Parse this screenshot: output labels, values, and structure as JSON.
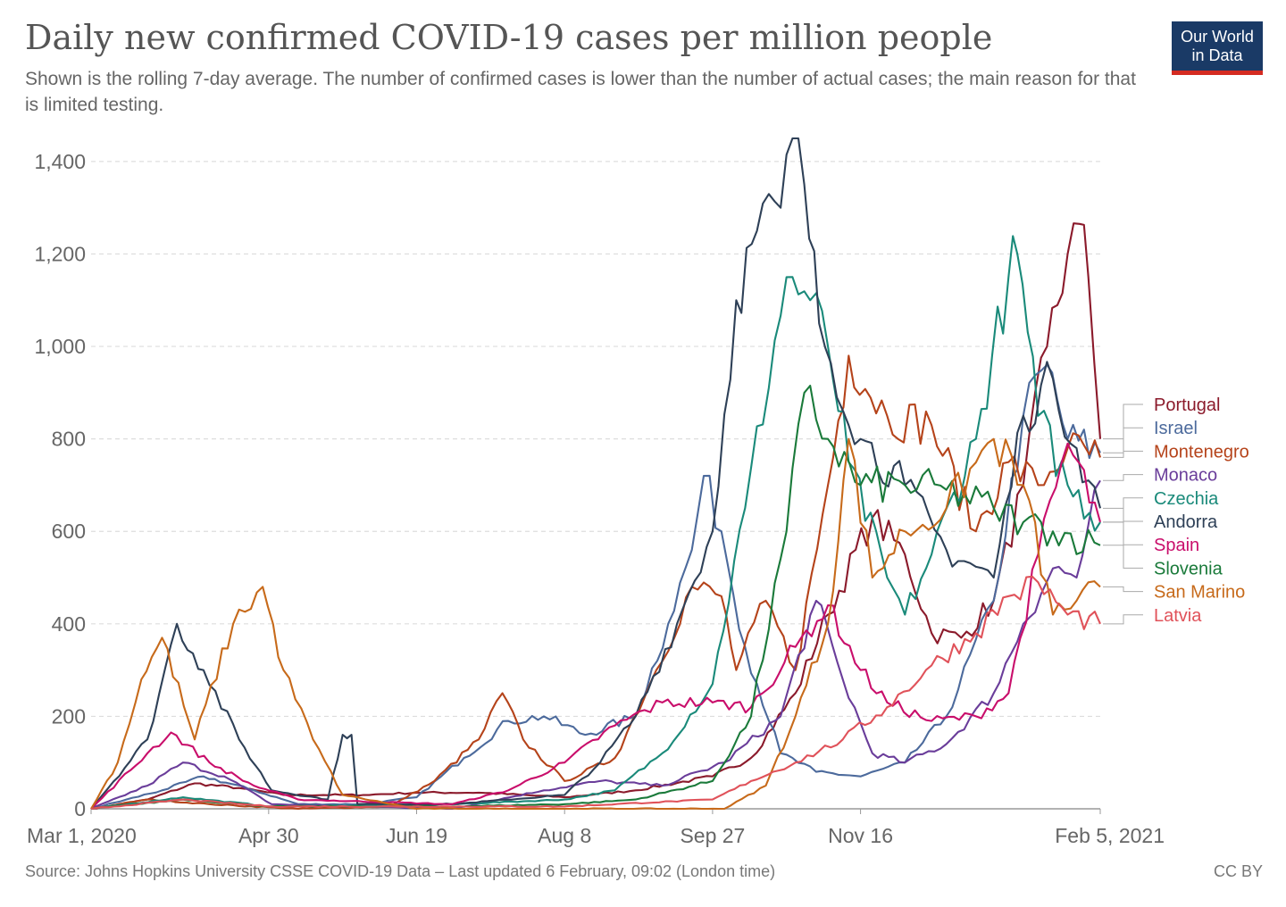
{
  "header": {
    "title": "Daily new confirmed COVID-19 cases per million people",
    "subtitle": "Shown is the rolling 7-day average. The number of confirmed cases is lower than the number of actual cases; the main reason for that is limited testing."
  },
  "logo": {
    "line1": "Our World",
    "line2": "in Data",
    "bg_color": "#1a3a66",
    "bar_color": "#d42b21"
  },
  "footer": {
    "source": "Source: Johns Hopkins University CSSE COVID-19 Data – Last updated 6 February, 09:02 (London time)",
    "license": "CC BY"
  },
  "chart_data": {
    "type": "line",
    "title": "Daily new confirmed COVID-19 cases per million people",
    "ylim": [
      0,
      1450
    ],
    "yticks": [
      0,
      200,
      400,
      600,
      800,
      1000,
      1200,
      1400
    ],
    "ytick_labels": [
      "0",
      "200",
      "400",
      "600",
      "800",
      "1,000",
      "1,200",
      "1,400"
    ],
    "xlim": [
      "2020-03-01",
      "2021-02-05"
    ],
    "xticks": [
      "2020-03-01",
      "2020-04-30",
      "2020-06-19",
      "2020-08-08",
      "2020-09-27",
      "2020-11-16",
      "2021-02-05"
    ],
    "xtick_labels": [
      "Mar 1, 2020",
      "Apr 30",
      "Jun 19",
      "Aug 8",
      "Sep 27",
      "Nov 16",
      "Feb 5, 2021"
    ],
    "grid": "horizontal-dashed",
    "legend": "right-end-labels",
    "series": [
      {
        "name": "Portugal",
        "color": "#8b1a2b",
        "points": [
          [
            "2020-03-01",
            0
          ],
          [
            "2020-03-20",
            20
          ],
          [
            "2020-04-05",
            55
          ],
          [
            "2020-04-20",
            45
          ],
          [
            "2020-05-05",
            30
          ],
          [
            "2020-06-01",
            30
          ],
          [
            "2020-06-19",
            35
          ],
          [
            "2020-07-10",
            35
          ],
          [
            "2020-08-08",
            25
          ],
          [
            "2020-09-01",
            40
          ],
          [
            "2020-09-27",
            70
          ],
          [
            "2020-10-10",
            110
          ],
          [
            "2020-10-25",
            250
          ],
          [
            "2020-11-05",
            420
          ],
          [
            "2020-11-20",
            630
          ],
          [
            "2020-12-01",
            550
          ],
          [
            "2020-12-10",
            380
          ],
          [
            "2020-12-20",
            370
          ],
          [
            "2020-12-31",
            450
          ],
          [
            "2021-01-10",
            700
          ],
          [
            "2021-01-18",
            1000
          ],
          [
            "2021-01-25",
            1200
          ],
          [
            "2021-01-29",
            1265
          ],
          [
            "2021-02-01",
            1150
          ],
          [
            "2021-02-05",
            800
          ]
        ]
      },
      {
        "name": "Israel",
        "color": "#4c6a9c",
        "points": [
          [
            "2020-03-01",
            0
          ],
          [
            "2020-03-25",
            40
          ],
          [
            "2020-04-08",
            70
          ],
          [
            "2020-04-25",
            40
          ],
          [
            "2020-05-10",
            10
          ],
          [
            "2020-06-01",
            10
          ],
          [
            "2020-06-19",
            25
          ],
          [
            "2020-07-05",
            110
          ],
          [
            "2020-07-20",
            190
          ],
          [
            "2020-08-01",
            200
          ],
          [
            "2020-08-15",
            160
          ],
          [
            "2020-09-01",
            200
          ],
          [
            "2020-09-12",
            400
          ],
          [
            "2020-09-20",
            560
          ],
          [
            "2020-09-24",
            720
          ],
          [
            "2020-09-30",
            600
          ],
          [
            "2020-10-08",
            350
          ],
          [
            "2020-10-20",
            120
          ],
          [
            "2020-11-01",
            80
          ],
          [
            "2020-11-16",
            70
          ],
          [
            "2020-12-01",
            100
          ],
          [
            "2020-12-15",
            200
          ],
          [
            "2020-12-31",
            450
          ],
          [
            "2021-01-10",
            850
          ],
          [
            "2021-01-18",
            960
          ],
          [
            "2021-01-25",
            800
          ],
          [
            "2021-02-05",
            770
          ]
        ]
      },
      {
        "name": "Montenegro",
        "color": "#b5431a",
        "points": [
          [
            "2020-03-01",
            0
          ],
          [
            "2020-03-20",
            20
          ],
          [
            "2020-04-10",
            10
          ],
          [
            "2020-05-10",
            0
          ],
          [
            "2020-06-10",
            5
          ],
          [
            "2020-06-25",
            60
          ],
          [
            "2020-07-10",
            150
          ],
          [
            "2020-07-18",
            250
          ],
          [
            "2020-07-25",
            150
          ],
          [
            "2020-08-08",
            60
          ],
          [
            "2020-08-25",
            110
          ],
          [
            "2020-09-08",
            300
          ],
          [
            "2020-09-20",
            480
          ],
          [
            "2020-09-30",
            460
          ],
          [
            "2020-10-05",
            300
          ],
          [
            "2020-10-15",
            450
          ],
          [
            "2020-10-25",
            300
          ],
          [
            "2020-11-05",
            700
          ],
          [
            "2020-11-12",
            980
          ],
          [
            "2020-11-25",
            850
          ],
          [
            "2020-12-10",
            830
          ],
          [
            "2020-12-25",
            600
          ],
          [
            "2021-01-05",
            750
          ],
          [
            "2021-01-15",
            700
          ],
          [
            "2021-01-25",
            780
          ],
          [
            "2021-02-05",
            760
          ]
        ]
      },
      {
        "name": "Monaco",
        "color": "#6a3d9a",
        "points": [
          [
            "2020-03-01",
            0
          ],
          [
            "2020-03-20",
            50
          ],
          [
            "2020-04-01",
            100
          ],
          [
            "2020-04-15",
            70
          ],
          [
            "2020-05-01",
            10
          ],
          [
            "2020-07-01",
            0
          ],
          [
            "2020-08-01",
            40
          ],
          [
            "2020-08-20",
            60
          ],
          [
            "2020-09-10",
            50
          ],
          [
            "2020-10-01",
            100
          ],
          [
            "2020-10-20",
            200
          ],
          [
            "2020-11-01",
            450
          ],
          [
            "2020-11-10",
            280
          ],
          [
            "2020-11-20",
            120
          ],
          [
            "2020-12-01",
            100
          ],
          [
            "2020-12-15",
            140
          ],
          [
            "2020-12-31",
            250
          ],
          [
            "2021-01-10",
            400
          ],
          [
            "2021-01-20",
            520
          ],
          [
            "2021-01-28",
            500
          ],
          [
            "2021-02-05",
            710
          ]
        ]
      },
      {
        "name": "Czechia",
        "color": "#1a8a7a",
        "points": [
          [
            "2020-03-01",
            0
          ],
          [
            "2020-04-01",
            25
          ],
          [
            "2020-05-01",
            5
          ],
          [
            "2020-07-01",
            10
          ],
          [
            "2020-08-08",
            20
          ],
          [
            "2020-08-25",
            40
          ],
          [
            "2020-09-10",
            120
          ],
          [
            "2020-09-27",
            270
          ],
          [
            "2020-10-08",
            650
          ],
          [
            "2020-10-22",
            1150
          ],
          [
            "2020-10-30",
            1100
          ],
          [
            "2020-11-05",
            1000
          ],
          [
            "2020-11-12",
            750
          ],
          [
            "2020-11-25",
            500
          ],
          [
            "2020-12-01",
            420
          ],
          [
            "2020-12-10",
            550
          ],
          [
            "2020-12-25",
            800
          ],
          [
            "2021-01-05",
            1150
          ],
          [
            "2021-01-08",
            1200
          ],
          [
            "2021-01-15",
            850
          ],
          [
            "2021-01-25",
            700
          ],
          [
            "2021-02-05",
            620
          ]
        ]
      },
      {
        "name": "Andorra",
        "color": "#2e4057",
        "points": [
          [
            "2020-03-01",
            0
          ],
          [
            "2020-03-20",
            150
          ],
          [
            "2020-03-30",
            400
          ],
          [
            "2020-04-08",
            300
          ],
          [
            "2020-04-20",
            150
          ],
          [
            "2020-05-01",
            40
          ],
          [
            "2020-05-20",
            20
          ],
          [
            "2020-05-25",
            160
          ],
          [
            "2020-05-28",
            160
          ],
          [
            "2020-05-30",
            10
          ],
          [
            "2020-07-01",
            10
          ],
          [
            "2020-08-08",
            30
          ],
          [
            "2020-08-20",
            100
          ],
          [
            "2020-09-01",
            200
          ],
          [
            "2020-09-15",
            400
          ],
          [
            "2020-09-27",
            600
          ],
          [
            "2020-10-05",
            1100
          ],
          [
            "2020-10-12",
            1250
          ],
          [
            "2020-10-20",
            1300
          ],
          [
            "2020-10-24",
            1450
          ],
          [
            "2020-10-28",
            1350
          ],
          [
            "2020-11-02",
            1050
          ],
          [
            "2020-11-16",
            800
          ],
          [
            "2020-12-01",
            700
          ],
          [
            "2020-12-15",
            560
          ],
          [
            "2020-12-31",
            500
          ],
          [
            "2021-01-10",
            850
          ],
          [
            "2021-01-20",
            930
          ],
          [
            "2021-01-28",
            780
          ],
          [
            "2021-02-05",
            650
          ]
        ]
      },
      {
        "name": "Spain",
        "color": "#c90e6b",
        "points": [
          [
            "2020-03-01",
            0
          ],
          [
            "2020-03-20",
            120
          ],
          [
            "2020-03-28",
            165
          ],
          [
            "2020-04-10",
            100
          ],
          [
            "2020-04-25",
            50
          ],
          [
            "2020-05-10",
            20
          ],
          [
            "2020-07-01",
            10
          ],
          [
            "2020-07-20",
            40
          ],
          [
            "2020-08-08",
            100
          ],
          [
            "2020-08-25",
            180
          ],
          [
            "2020-09-10",
            230
          ],
          [
            "2020-09-27",
            230
          ],
          [
            "2020-10-10",
            220
          ],
          [
            "2020-10-25",
            350
          ],
          [
            "2020-11-05",
            440
          ],
          [
            "2020-11-16",
            300
          ],
          [
            "2020-11-25",
            230
          ],
          [
            "2020-12-10",
            190
          ],
          [
            "2020-12-25",
            200
          ],
          [
            "2021-01-05",
            250
          ],
          [
            "2021-01-15",
            550
          ],
          [
            "2021-01-25",
            790
          ],
          [
            "2021-02-05",
            620
          ]
        ]
      },
      {
        "name": "Slovenia",
        "color": "#1a7a3a",
        "points": [
          [
            "2020-03-01",
            0
          ],
          [
            "2020-04-01",
            20
          ],
          [
            "2020-05-01",
            5
          ],
          [
            "2020-07-01",
            5
          ],
          [
            "2020-08-08",
            10
          ],
          [
            "2020-09-01",
            20
          ],
          [
            "2020-09-27",
            60
          ],
          [
            "2020-10-10",
            200
          ],
          [
            "2020-10-22",
            600
          ],
          [
            "2020-10-28",
            900
          ],
          [
            "2020-11-05",
            800
          ],
          [
            "2020-11-16",
            700
          ],
          [
            "2020-12-01",
            700
          ],
          [
            "2020-12-15",
            690
          ],
          [
            "2020-12-31",
            650
          ],
          [
            "2021-01-10",
            620
          ],
          [
            "2021-01-20",
            600
          ],
          [
            "2021-02-05",
            570
          ]
        ]
      },
      {
        "name": "San Marino",
        "color": "#c76a1a",
        "points": [
          [
            "2020-03-01",
            0
          ],
          [
            "2020-03-10",
            100
          ],
          [
            "2020-03-18",
            280
          ],
          [
            "2020-03-25",
            370
          ],
          [
            "2020-04-05",
            150
          ],
          [
            "2020-04-18",
            400
          ],
          [
            "2020-04-28",
            480
          ],
          [
            "2020-05-05",
            300
          ],
          [
            "2020-05-15",
            150
          ],
          [
            "2020-05-25",
            30
          ],
          [
            "2020-06-19",
            0
          ],
          [
            "2020-07-15",
            0
          ],
          [
            "2020-08-08",
            0
          ],
          [
            "2020-09-10",
            0
          ],
          [
            "2020-10-01",
            0
          ],
          [
            "2020-10-15",
            50
          ],
          [
            "2020-10-25",
            200
          ],
          [
            "2020-11-05",
            400
          ],
          [
            "2020-11-12",
            800
          ],
          [
            "2020-11-20",
            500
          ],
          [
            "2020-12-01",
            600
          ],
          [
            "2020-12-15",
            650
          ],
          [
            "2020-12-31",
            800
          ],
          [
            "2021-01-10",
            700
          ],
          [
            "2021-01-20",
            420
          ],
          [
            "2021-01-28",
            450
          ],
          [
            "2021-02-05",
            480
          ]
        ]
      },
      {
        "name": "Latvia",
        "color": "#e0525a",
        "points": [
          [
            "2020-03-01",
            0
          ],
          [
            "2020-04-01",
            20
          ],
          [
            "2020-05-01",
            5
          ],
          [
            "2020-08-08",
            5
          ],
          [
            "2020-09-27",
            20
          ],
          [
            "2020-10-10",
            60
          ],
          [
            "2020-10-25",
            100
          ],
          [
            "2020-11-10",
            150
          ],
          [
            "2020-11-25",
            220
          ],
          [
            "2020-12-10",
            310
          ],
          [
            "2020-12-25",
            380
          ],
          [
            "2021-01-05",
            460
          ],
          [
            "2021-01-15",
            490
          ],
          [
            "2021-01-25",
            420
          ],
          [
            "2021-02-05",
            400
          ]
        ]
      }
    ]
  }
}
